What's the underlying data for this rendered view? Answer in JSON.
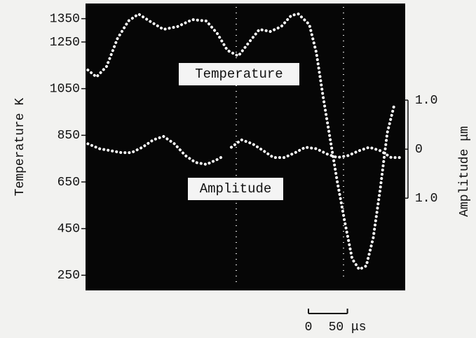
{
  "chart_data": {
    "type": "line",
    "y_label": "Temperature  K",
    "y2_label": "Amplitude  μm",
    "xlim": [
      0,
      410
    ],
    "ylim": [
      200,
      1400
    ],
    "yticks": [
      250,
      450,
      650,
      850,
      1050,
      1250,
      1350
    ],
    "y2lim": [
      -2.81,
      2.9
    ],
    "y2ticks": [
      {
        "value": 1.0,
        "label": "1.0"
      },
      0,
      {
        "value": -1.0,
        "label": "1.0"
      }
    ],
    "scale_bar_ticks": [
      0,
      {
        "value": 50,
        "label": "50 μs"
      }
    ],
    "series": [
      {
        "name": "Temperature",
        "color": "#ffffff",
        "x": [
          3,
          14,
          27,
          41,
          55,
          68,
          82,
          100,
          118,
          137,
          155,
          169,
          182,
          196,
          210,
          223,
          237,
          251,
          264,
          273,
          287,
          296,
          305,
          314,
          323,
          333,
          342,
          351,
          360,
          369,
          378,
          387,
          396
        ],
        "values": [
          1130,
          1100,
          1145,
          1265,
          1340,
          1370,
          1340,
          1304,
          1316,
          1346,
          1340,
          1286,
          1214,
          1190,
          1250,
          1304,
          1295,
          1316,
          1364,
          1370,
          1325,
          1205,
          1010,
          830,
          650,
          470,
          320,
          275,
          290,
          410,
          620,
          860,
          980
        ]
      },
      {
        "name": "Amplitude",
        "color": "#ffffff",
        "axis": "y2",
        "x": [
          3,
          18,
          32,
          46,
          59,
          73,
          87,
          100,
          114,
          128,
          141,
          155,
          169,
          178,
          182,
          187,
          200,
          214,
          228,
          241,
          255,
          269,
          282,
          296,
          310,
          323,
          337,
          351,
          364,
          378,
          392,
          405
        ],
        "values": [
          0.11,
          0.01,
          -0.03,
          -0.07,
          -0.07,
          0.04,
          0.19,
          0.26,
          0.11,
          -0.13,
          -0.27,
          -0.31,
          -0.21,
          -0.13,
          null,
          0.04,
          0.19,
          0.11,
          -0.03,
          -0.17,
          -0.17,
          -0.07,
          0.04,
          0.01,
          -0.1,
          -0.17,
          -0.13,
          -0.03,
          0.04,
          -0.03,
          -0.17,
          -0.17
        ]
      }
    ]
  }
}
